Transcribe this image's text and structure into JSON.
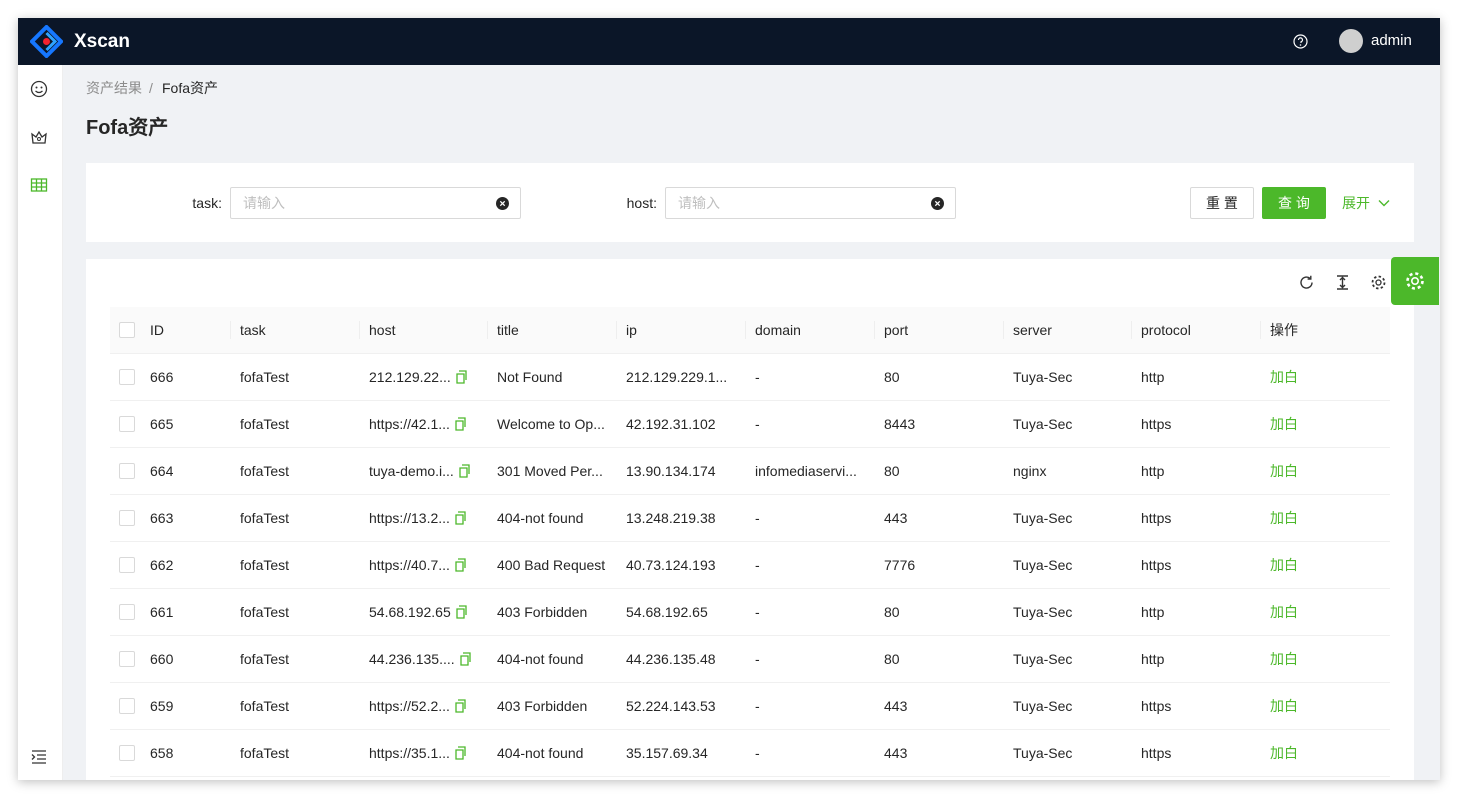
{
  "header": {
    "brand": "Xscan",
    "user": "admin"
  },
  "breadcrumb": [
    "资产结果",
    "/",
    "Fofa资产"
  ],
  "page_title": "Fofa资产",
  "filters": [
    {
      "label": "task:",
      "placeholder": "请输入"
    },
    {
      "label": "host:",
      "placeholder": "请输入"
    }
  ],
  "buttons": {
    "reset": "重 置",
    "query": "查 询",
    "expand": "展开"
  },
  "table": {
    "columns": [
      "ID",
      "task",
      "host",
      "title",
      "ip",
      "domain",
      "port",
      "server",
      "protocol",
      "操作"
    ],
    "rows": [
      [
        "666",
        "fofaTest",
        "212.129.22...",
        "Not Found",
        "212.129.229.1...",
        "-",
        "80",
        "Tuya-Sec",
        "http",
        "加白"
      ],
      [
        "665",
        "fofaTest",
        "https://42.1...",
        "Welcome to Op...",
        "42.192.31.102",
        "-",
        "8443",
        "Tuya-Sec",
        "https",
        "加白"
      ],
      [
        "664",
        "fofaTest",
        "tuya-demo.i...",
        "301 Moved Per...",
        "13.90.134.174",
        "infomediaservi...",
        "80",
        "nginx",
        "http",
        "加白"
      ],
      [
        "663",
        "fofaTest",
        "https://13.2...",
        "404-not found",
        "13.248.219.38",
        "-",
        "443",
        "Tuya-Sec",
        "https",
        "加白"
      ],
      [
        "662",
        "fofaTest",
        "https://40.7...",
        "400 Bad Request",
        "40.73.124.193",
        "-",
        "7776",
        "Tuya-Sec",
        "https",
        "加白"
      ],
      [
        "661",
        "fofaTest",
        "54.68.192.65",
        "403 Forbidden",
        "54.68.192.65",
        "-",
        "80",
        "Tuya-Sec",
        "http",
        "加白"
      ],
      [
        "660",
        "fofaTest",
        "44.236.135....",
        "404-not found",
        "44.236.135.48",
        "-",
        "80",
        "Tuya-Sec",
        "http",
        "加白"
      ],
      [
        "659",
        "fofaTest",
        "https://52.2...",
        "403 Forbidden",
        "52.224.143.53",
        "-",
        "443",
        "Tuya-Sec",
        "https",
        "加白"
      ],
      [
        "658",
        "fofaTest",
        "https://35.1...",
        "404-not found",
        "35.157.69.34",
        "-",
        "443",
        "Tuya-Sec",
        "https",
        "加白"
      ]
    ]
  }
}
